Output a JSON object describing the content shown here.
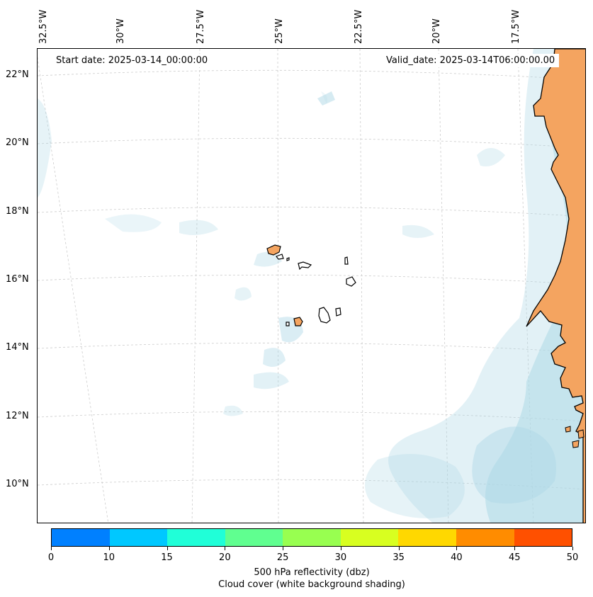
{
  "map": {
    "start_date": "Start date: 2025-03-14_00:00:00",
    "valid_date": "Valid_date: 2025-03-14T06:00:00.00",
    "longitude_labels": [
      "32.5°W",
      "30°W",
      "27.5°W",
      "25°W",
      "22.5°W",
      "20°W",
      "17.5°W"
    ],
    "latitude_labels": [
      "22°N",
      "20°N",
      "18°N",
      "16°N",
      "14°N",
      "12°N",
      "10°N"
    ],
    "colors": {
      "land": "#f4a460",
      "cloud": "#add8e6",
      "coastline": "#000000",
      "gridline": "#cccccc"
    }
  },
  "colorbar": {
    "ticks": [
      "0",
      "10",
      "15",
      "20",
      "25",
      "30",
      "35",
      "40",
      "45",
      "50"
    ],
    "colors": [
      "#0080ff",
      "#00c8ff",
      "#20ffd8",
      "#60ff90",
      "#98ff50",
      "#d8ff20",
      "#ffd800",
      "#ff8c00",
      "#ff5000"
    ],
    "label_line1": "500 hPa reflectivity (dbz)",
    "label_line2": "Cloud cover (white background shading)"
  }
}
